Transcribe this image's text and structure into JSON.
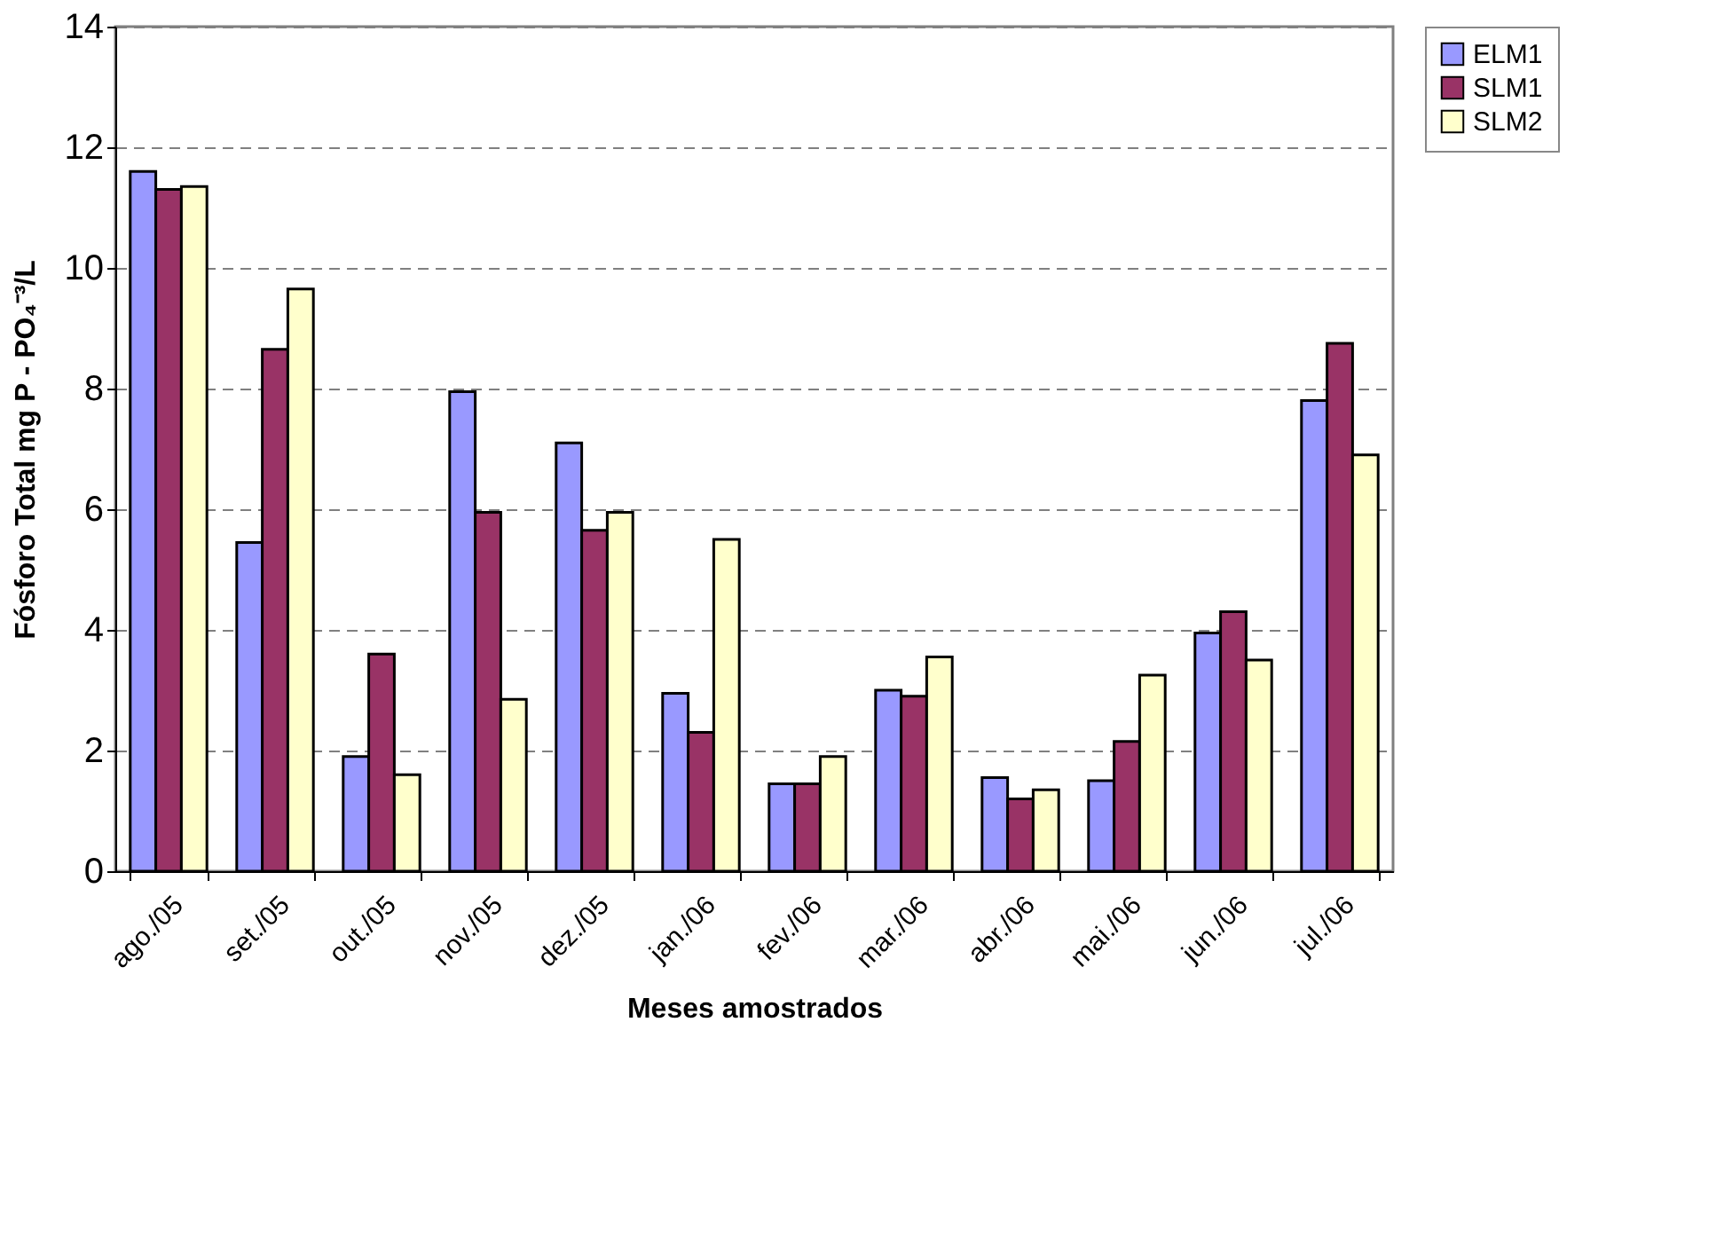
{
  "chart_data": {
    "type": "bar",
    "xlabel": "Meses amostrados",
    "ylabel": "Fósforo Total mg P - PO₄⁻³/L",
    "categories": [
      "ago./05",
      "set./05",
      "out./05",
      "nov./05",
      "dez./05",
      "jan./06",
      "fev./06",
      "mar./06",
      "abr./06",
      "mai./06",
      "jun./06",
      "jul./06"
    ],
    "series": [
      {
        "name": "ELM1",
        "color": "#9999ff",
        "values": [
          11.6,
          5.45,
          1.9,
          7.95,
          7.1,
          2.95,
          1.45,
          3.0,
          1.55,
          1.5,
          3.95,
          7.8
        ]
      },
      {
        "name": "SLM1",
        "color": "#993366",
        "values": [
          11.3,
          8.65,
          3.6,
          5.95,
          5.65,
          2.3,
          1.45,
          2.9,
          1.2,
          2.15,
          4.3,
          8.75
        ]
      },
      {
        "name": "SLM2",
        "color": "#ffffcc",
        "values": [
          11.35,
          9.65,
          1.6,
          2.85,
          5.95,
          5.5,
          1.9,
          3.55,
          1.35,
          3.25,
          3.5,
          6.9
        ]
      }
    ],
    "ylim": [
      0,
      14
    ],
    "yticks": [
      0,
      2,
      4,
      6,
      8,
      10,
      12,
      14
    ],
    "grid": "y",
    "legend": "right"
  }
}
